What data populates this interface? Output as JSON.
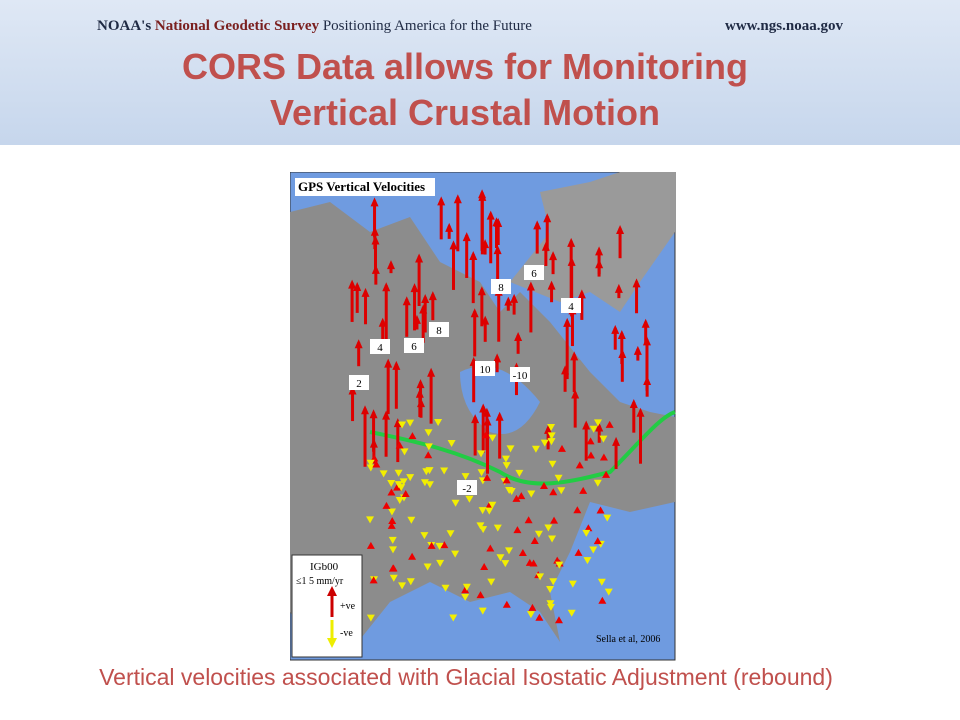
{
  "header": {
    "organization": "NOAA's",
    "program": "National Geodetic Survey",
    "tagline": "Positioning America for the Future",
    "url": "www.ngs.noaa.gov"
  },
  "title": {
    "line1": "CORS Data allows for Monitoring",
    "line2": "Vertical Crustal Motion"
  },
  "map": {
    "title": "GPS Vertical Velocities",
    "contour_labels": [
      "8",
      "6",
      "4",
      "8",
      "6",
      "4",
      "2",
      "10",
      "-10",
      "-2"
    ],
    "legend": {
      "frame": "IGb00",
      "scale": "≤1  5 mm/yr",
      "up": "+ve",
      "down": "-ve"
    },
    "credit": "Sella et al, 2006"
  },
  "caption": "Vertical velocities associated with Glacial Isostatic Adjustment (rebound)"
}
